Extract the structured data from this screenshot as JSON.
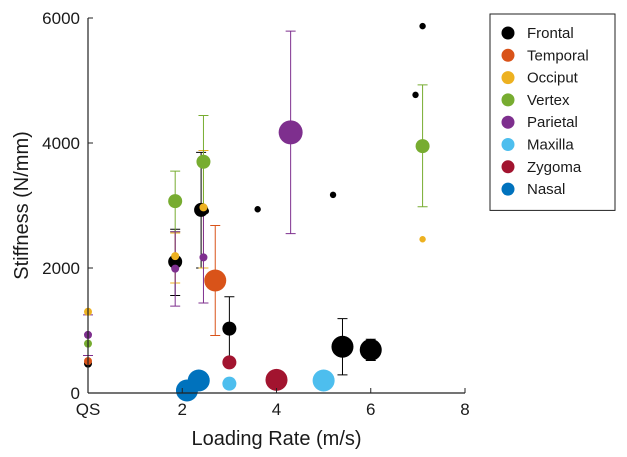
{
  "chart_data": {
    "type": "scatter",
    "title": "",
    "xlabel": "Loading Rate (m/s)",
    "ylabel": "Stiffness (N/mm)",
    "xlim": [
      0,
      8
    ],
    "ylim": [
      0,
      6000
    ],
    "xticks": [
      0,
      2,
      4,
      6,
      8
    ],
    "xtick_labels": [
      "QS",
      "2",
      "4",
      "6",
      "8"
    ],
    "yticks": [
      0,
      2000,
      4000,
      6000
    ],
    "ytick_labels": [
      "0",
      "2000",
      "4000",
      "6000"
    ],
    "grid": false,
    "legend_position": "top-right",
    "marker_size_note": "marker size varies by point",
    "series": [
      {
        "name": "Frontal",
        "color": "#000000",
        "points": [
          {
            "x": 0.0,
            "y": 470,
            "size": "small"
          },
          {
            "x": 1.85,
            "y": 2100,
            "size": "medium",
            "err_low": 1560,
            "err_high": 2620
          },
          {
            "x": 2.4,
            "y": 2930,
            "size": "medium",
            "err_low": 2000,
            "err_high": 3850
          },
          {
            "x": 2.5,
            "y": 2910,
            "size": "tiny"
          },
          {
            "x": 3.0,
            "y": 1030,
            "size": "medium",
            "err_low": 520,
            "err_high": 1540
          },
          {
            "x": 3.6,
            "y": 2940,
            "size": "tiny"
          },
          {
            "x": 5.2,
            "y": 3170,
            "size": "tiny"
          },
          {
            "x": 5.4,
            "y": 740,
            "size": "large",
            "err_low": 290,
            "err_high": 1190
          },
          {
            "x": 6.0,
            "y": 690,
            "size": "large",
            "err_low": 520,
            "err_high": 860
          },
          {
            "x": 6.95,
            "y": 4770,
            "size": "tiny"
          },
          {
            "x": 7.1,
            "y": 5870,
            "size": "tiny"
          }
        ]
      },
      {
        "name": "Temporal",
        "color": "#d95319",
        "points": [
          {
            "x": 0.0,
            "y": 510,
            "size": "small"
          },
          {
            "x": 2.7,
            "y": 1800,
            "size": "large",
            "err_low": 920,
            "err_high": 2680
          }
        ]
      },
      {
        "name": "Occiput",
        "color": "#edb120",
        "points": [
          {
            "x": 0.0,
            "y": 1300,
            "size": "small"
          },
          {
            "x": 1.85,
            "y": 2190,
            "size": "small",
            "err_low": 1760,
            "err_high": 2560
          },
          {
            "x": 2.45,
            "y": 2970,
            "size": "small",
            "err_low": 2000,
            "err_high": 3880
          },
          {
            "x": 7.1,
            "y": 2460,
            "size": "tiny"
          }
        ]
      },
      {
        "name": "Vertex",
        "color": "#77ac30",
        "points": [
          {
            "x": 0.0,
            "y": 790,
            "size": "small"
          },
          {
            "x": 1.85,
            "y": 3070,
            "size": "medium",
            "err_low": 2580,
            "err_high": 3550
          },
          {
            "x": 2.45,
            "y": 3700,
            "size": "medium",
            "err_low": 2940,
            "err_high": 4440
          },
          {
            "x": 7.1,
            "y": 3950,
            "size": "medium",
            "err_low": 2980,
            "err_high": 4930
          }
        ]
      },
      {
        "name": "Parietal",
        "color": "#7e2f8e",
        "points": [
          {
            "x": 0.0,
            "y": 930,
            "size": "small",
            "err_low": 600,
            "err_high": 1250
          },
          {
            "x": 1.85,
            "y": 1990,
            "size": "small",
            "err_low": 1390,
            "err_high": 2580
          },
          {
            "x": 2.45,
            "y": 2170,
            "size": "small",
            "err_low": 1440,
            "err_high": 2900
          },
          {
            "x": 4.3,
            "y": 4170,
            "size": "xlarge",
            "err_low": 2550,
            "err_high": 5790
          }
        ]
      },
      {
        "name": "Maxilla",
        "color": "#4dbeee",
        "points": [
          {
            "x": 3.0,
            "y": 150,
            "size": "medium"
          },
          {
            "x": 5.0,
            "y": 200,
            "size": "large"
          }
        ]
      },
      {
        "name": "Zygoma",
        "color": "#a2142f",
        "points": [
          {
            "x": 3.0,
            "y": 490,
            "size": "medium"
          },
          {
            "x": 4.0,
            "y": 210,
            "size": "large"
          }
        ]
      },
      {
        "name": "Nasal",
        "color": "#0072bd",
        "points": [
          {
            "x": 2.1,
            "y": 40,
            "size": "large"
          },
          {
            "x": 2.35,
            "y": 200,
            "size": "large"
          }
        ]
      }
    ]
  }
}
